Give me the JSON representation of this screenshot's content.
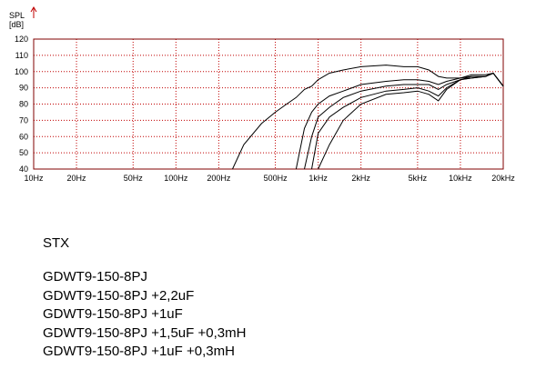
{
  "chart_data": {
    "type": "line",
    "y_label": "SPL",
    "y_unit": "[dB]",
    "x_scale": "log",
    "x": [
      250,
      300,
      400,
      500,
      600,
      700,
      800,
      900,
      1000,
      1200,
      1500,
      2000,
      3000,
      4000,
      5000,
      6000,
      7000,
      8000,
      10000,
      12000,
      15000,
      17000,
      20000
    ],
    "xlim": [
      10,
      20000
    ],
    "xticks": [
      {
        "value": 10,
        "label": "10Hz"
      },
      {
        "value": 20,
        "label": "20Hz"
      },
      {
        "value": 50,
        "label": "50Hz"
      },
      {
        "value": 100,
        "label": "100Hz"
      },
      {
        "value": 200,
        "label": "200Hz"
      },
      {
        "value": 500,
        "label": "500Hz"
      },
      {
        "value": 1000,
        "label": "1kHz"
      },
      {
        "value": 2000,
        "label": "2kHz"
      },
      {
        "value": 5000,
        "label": "5kHz"
      },
      {
        "value": 10000,
        "label": "10kHz"
      },
      {
        "value": 20000,
        "label": "20kHz"
      }
    ],
    "ylim": [
      40,
      120
    ],
    "yticks": [
      40,
      50,
      60,
      70,
      80,
      90,
      100,
      110,
      120
    ],
    "grid": true,
    "grid_color": "#c00000",
    "frame_color": "#800000",
    "legend_title": "STX",
    "series": [
      {
        "name": "GDWT9-150-8PJ",
        "color": "#000000",
        "values": [
          40,
          55,
          68,
          75,
          80,
          84,
          89,
          91,
          95,
          99,
          101,
          103,
          104,
          103,
          103,
          101,
          97,
          96,
          96,
          98,
          98,
          99,
          91
        ]
      },
      {
        "name": "GDWT9-150-8PJ +2,2uF",
        "color": "#000000",
        "values": [
          null,
          null,
          null,
          null,
          null,
          40,
          65,
          75,
          80,
          85,
          88,
          92,
          94,
          95,
          95,
          94,
          92,
          94,
          96,
          97,
          97,
          99,
          91
        ]
      },
      {
        "name": "GDWT9-150-8PJ +1uF",
        "color": "#000000",
        "values": [
          null,
          null,
          null,
          null,
          null,
          null,
          40,
          60,
          72,
          78,
          84,
          88,
          91,
          92,
          92,
          92,
          89,
          92,
          95,
          97,
          97,
          99,
          91
        ]
      },
      {
        "name": "GDWT9-150-8PJ +1,5uF +0,3mH",
        "color": "#000000",
        "values": [
          null,
          null,
          null,
          null,
          null,
          null,
          null,
          40,
          62,
          72,
          78,
          84,
          88,
          89,
          90,
          88,
          85,
          90,
          95,
          96,
          97,
          99,
          91
        ]
      },
      {
        "name": "GDWT9-150-8PJ +1uF +0,3mH",
        "color": "#000000",
        "values": [
          null,
          null,
          null,
          null,
          null,
          null,
          null,
          null,
          40,
          55,
          70,
          80,
          86,
          87,
          88,
          86,
          82,
          89,
          95,
          96,
          97,
          99,
          91
        ]
      }
    ]
  }
}
